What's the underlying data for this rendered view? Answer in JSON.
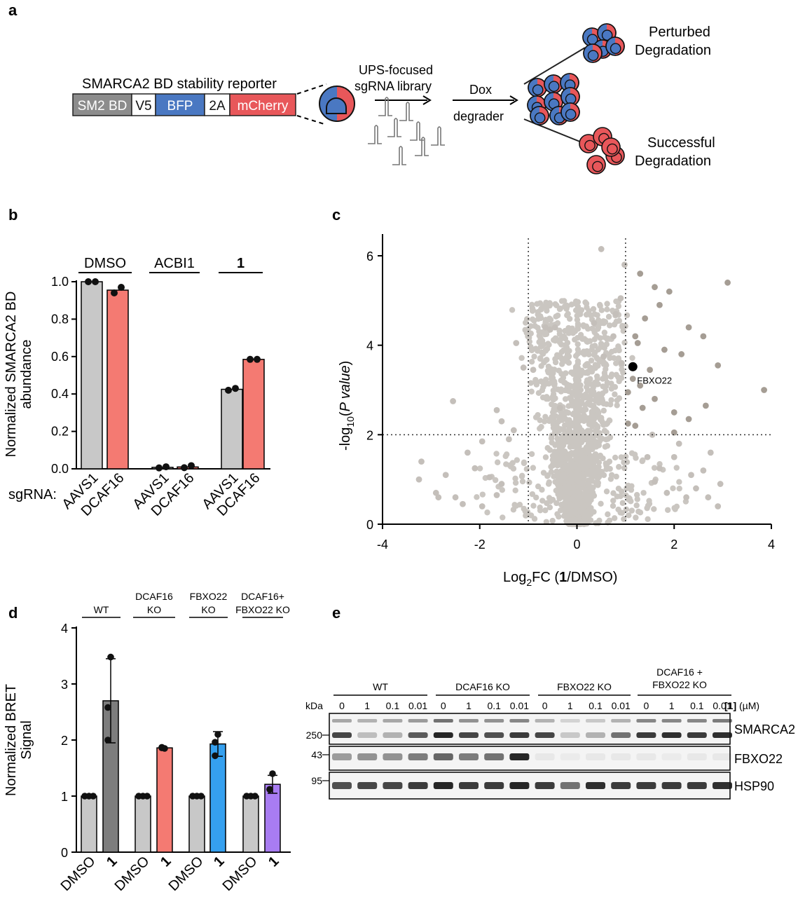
{
  "panels": {
    "a": "a",
    "b": "b",
    "c": "c",
    "d": "d",
    "e": "e"
  },
  "panel_a": {
    "reporter_title": "SMARCA2 BD stability reporter",
    "segments": [
      {
        "label": "SM2 BD",
        "color": "#8c8c8c",
        "text_color": "#ffffff"
      },
      {
        "label": "V5",
        "color": "#ffffff",
        "text_color": "#111111"
      },
      {
        "label": "BFP",
        "color": "#4a78c2",
        "text_color": "#ffffff"
      },
      {
        "label": "2A",
        "color": "#ffffff",
        "text_color": "#111111"
      },
      {
        "label": "mCherry",
        "color": "#e8575a",
        "text_color": "#ffffff"
      }
    ],
    "library_line1": "UPS-focused",
    "library_line2": "sgRNA library",
    "treat_line1": "Dox",
    "treat_line2": "degrader",
    "outcome_top_line1": "Perturbed",
    "outcome_top_line2": "Degradation",
    "outcome_bottom_line1": "Successful",
    "outcome_bottom_line2": "Degradation",
    "colors": {
      "blue": "#4a78c2",
      "red": "#e8575a"
    }
  },
  "chart_data": [
    {
      "id": "b",
      "type": "bar",
      "ylabel_line1": "Normalized SMARCA2 BD",
      "ylabel_line2": "abundance",
      "ylim": [
        0,
        1.0
      ],
      "yticks": [
        "0.0",
        "0.2",
        "0.4",
        "0.6",
        "0.8",
        "1.0"
      ],
      "ytick_values": [
        0,
        0.2,
        0.4,
        0.6,
        0.8,
        1.0
      ],
      "groups": [
        {
          "label": "DMSO",
          "bold": false
        },
        {
          "label": "ACBI1",
          "bold": false
        },
        {
          "label": "1",
          "bold": true
        }
      ],
      "sgrna_label": "sgRNA:",
      "categories": [
        "AAVS1",
        "DCAF16",
        "AAVS1",
        "DCAF16",
        "AAVS1",
        "DCAF16"
      ],
      "values": [
        1.0,
        0.955,
        0.008,
        0.01,
        0.425,
        0.585
      ],
      "points": [
        [
          1.0,
          1.0
        ],
        [
          0.94,
          0.97
        ],
        [
          0.005,
          0.011
        ],
        [
          0.006,
          0.017
        ],
        [
          0.42,
          0.43
        ],
        [
          0.585,
          0.585
        ]
      ],
      "colors": [
        "#c8c8c8",
        "#f47a72",
        "#c8c8c8",
        "#f47a72",
        "#c8c8c8",
        "#f47a72"
      ]
    },
    {
      "id": "c",
      "type": "scatter",
      "xlabel_pre": "Log",
      "xlabel_sub": "2",
      "xlabel_mid": "FC (",
      "xlabel_bold": "1",
      "xlabel_post": "/DMSO)",
      "ylabel_pre": "-log",
      "ylabel_sub": "10",
      "ylabel_post": "(",
      "ylabel_ital": "P value",
      "ylabel_end": ")",
      "xlim": [
        -4,
        4
      ],
      "ylim": [
        0,
        6.5
      ],
      "xticks": [
        "-4",
        "-2",
        "0",
        "2",
        "4"
      ],
      "xtick_values": [
        -4,
        -2,
        0,
        2,
        4
      ],
      "yticks": [
        "0",
        "2",
        "4",
        "6"
      ],
      "ytick_values": [
        0,
        2,
        4,
        6
      ],
      "vlines": [
        -1,
        1
      ],
      "hline": 2,
      "highlight": {
        "label": "FBXO22",
        "x": 1.15,
        "y": 3.52
      },
      "outliers": [
        [
          0.5,
          6.15
        ],
        [
          0.98,
          5.8
        ],
        [
          1.3,
          5.6
        ],
        [
          1.6,
          5.3
        ],
        [
          1.7,
          4.9
        ],
        [
          1.4,
          4.6
        ],
        [
          2.3,
          4.4
        ],
        [
          3.1,
          5.4
        ],
        [
          1.9,
          5.2
        ],
        [
          0.9,
          5.05
        ],
        [
          1.2,
          4.2
        ],
        [
          2.6,
          4.2
        ],
        [
          2.15,
          3.8
        ],
        [
          1.25,
          4.05
        ],
        [
          1.8,
          3.9
        ],
        [
          1.5,
          3.45
        ],
        [
          1.3,
          3.1
        ],
        [
          1.6,
          2.8
        ],
        [
          2.3,
          2.35
        ],
        [
          2.0,
          2.5
        ],
        [
          2.9,
          3.55
        ],
        [
          3.85,
          3.0
        ],
        [
          1.15,
          3.25
        ],
        [
          1.05,
          2.95
        ],
        [
          1.35,
          2.6
        ],
        [
          1.2,
          2.2
        ],
        [
          1.55,
          2.0
        ],
        [
          2.0,
          2.05
        ],
        [
          2.65,
          2.65
        ],
        [
          2.1,
          1.8
        ],
        [
          2.75,
          1.6
        ],
        [
          2.6,
          1.2
        ],
        [
          2.35,
          1.1
        ],
        [
          2.45,
          0.8
        ],
        [
          2.7,
          0.6
        ],
        [
          2.9,
          0.4
        ],
        [
          2.95,
          0.9
        ],
        [
          2.25,
          0.6
        ],
        [
          2.0,
          1.5
        ],
        [
          1.7,
          1.25
        ],
        [
          1.45,
          1.5
        ],
        [
          1.6,
          0.95
        ],
        [
          1.85,
          0.7
        ],
        [
          -1.25,
          4.05
        ],
        [
          -0.65,
          4.4
        ],
        [
          -0.45,
          4.4
        ],
        [
          -1.1,
          3.5
        ],
        [
          -0.9,
          3.45
        ],
        [
          -2.55,
          2.75
        ],
        [
          -1.65,
          2.55
        ],
        [
          -1.55,
          2.3
        ],
        [
          -1.3,
          2.1
        ],
        [
          -1.95,
          1.85
        ],
        [
          -2.25,
          1.6
        ],
        [
          -2.1,
          1.25
        ],
        [
          -1.8,
          1.05
        ],
        [
          -1.55,
          0.9
        ],
        [
          -1.65,
          0.65
        ],
        [
          -2.5,
          0.6
        ],
        [
          -2.85,
          0.6
        ],
        [
          -2.9,
          0.7
        ],
        [
          -3.2,
          1.4
        ],
        [
          -3.25,
          1.0
        ],
        [
          -2.35,
          0.45
        ],
        [
          -1.95,
          0.4
        ],
        [
          -2.7,
          1.1
        ],
        [
          -1.4,
          1.9
        ],
        [
          -0.35,
          2.6
        ],
        [
          0.55,
          3.75
        ],
        [
          0.75,
          4.2
        ],
        [
          0.35,
          4.5
        ],
        [
          0.8,
          4.7
        ],
        [
          -0.55,
          4.35
        ],
        [
          0.92,
          3.6
        ],
        [
          1.05,
          2.25
        ]
      ]
    },
    {
      "id": "d",
      "type": "bar",
      "ylabel_line1": "Normalized BRET",
      "ylabel_line2": "Signal",
      "ylim": [
        0,
        4
      ],
      "yticks": [
        "0",
        "1",
        "2",
        "3",
        "4"
      ],
      "ytick_values": [
        0,
        1,
        2,
        3,
        4
      ],
      "groups": [
        {
          "line1": "WT",
          "line2": ""
        },
        {
          "line1": "DCAF16",
          "line2": "KO"
        },
        {
          "line1": "FBXO22",
          "line2": "KO"
        },
        {
          "line1": "DCAF16+",
          "line2": "FBXO22 KO"
        }
      ],
      "categories": [
        "DMSO",
        "1",
        "DMSO",
        "1",
        "DMSO",
        "1",
        "DMSO",
        "1"
      ],
      "categories_bold": [
        false,
        true,
        false,
        true,
        false,
        true,
        false,
        true
      ],
      "values": [
        1.0,
        2.7,
        1.0,
        1.86,
        1.0,
        1.93,
        1.0,
        1.21
      ],
      "errors": [
        0,
        0.75,
        0,
        0,
        0,
        0.22,
        0,
        0.16
      ],
      "points": [
        [
          1,
          1,
          1
        ],
        [
          3.48,
          2.58,
          2.0
        ],
        [
          1,
          1,
          1
        ],
        [
          1.85,
          1.86,
          1.87
        ],
        [
          1,
          1,
          1
        ],
        [
          2.1,
          1.96,
          1.72
        ],
        [
          1,
          1,
          1
        ],
        [
          1.4,
          1.12,
          1.12
        ]
      ],
      "colors": [
        "#c8c8c8",
        "#7d7d7d",
        "#c8c8c8",
        "#f47a72",
        "#c8c8c8",
        "#35a0ef",
        "#c8c8c8",
        "#a87cf2"
      ]
    }
  ],
  "panel_e": {
    "kda_label": "kDa",
    "groups": [
      "WT",
      "DCAF16 KO",
      "FBXO22 KO",
      "DCAF16 +"
    ],
    "group4_line2": "FBXO22 KO",
    "doses": [
      "0",
      "1",
      "0.1",
      "0.01"
    ],
    "dose_label_bold": "[1]",
    "dose_label_unit": " (µM)",
    "blots": [
      {
        "name": "SMARCA2",
        "marker": "250"
      },
      {
        "name": "FBXO22",
        "marker": "43"
      },
      {
        "name": "HSP90",
        "marker": "95"
      }
    ],
    "smarca2_lower": [
      0.8,
      0.25,
      0.3,
      0.7,
      0.95,
      0.8,
      0.75,
      0.85,
      0.8,
      0.2,
      0.3,
      0.6,
      0.85,
      0.9,
      0.85,
      0.9
    ],
    "smarca2_upper": [
      0.35,
      0.3,
      0.35,
      0.4,
      0.6,
      0.45,
      0.45,
      0.5,
      0.3,
      0.15,
      0.2,
      0.3,
      0.5,
      0.5,
      0.5,
      0.55
    ],
    "fbxo22": [
      0.4,
      0.45,
      0.45,
      0.55,
      0.65,
      0.55,
      0.6,
      0.95,
      0.05,
      0.04,
      0.05,
      0.05,
      0.05,
      0.04,
      0.05,
      0.05
    ],
    "hsp90": [
      0.75,
      0.8,
      0.8,
      0.85,
      0.95,
      0.85,
      0.85,
      0.95,
      0.85,
      0.6,
      0.9,
      0.85,
      0.85,
      0.85,
      0.85,
      0.9
    ]
  }
}
